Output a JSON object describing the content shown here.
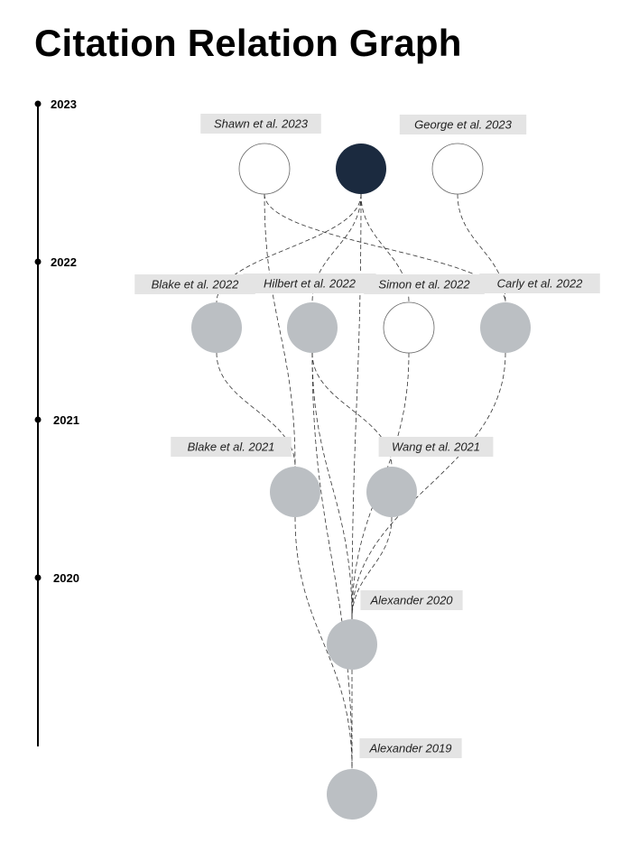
{
  "title": "Citation Relation Graph",
  "timeline": [
    "2023",
    "2022",
    "2021",
    "2020"
  ],
  "colors": {
    "focus": "#1b2a3f",
    "cited": "#bbbfc3",
    "uncited": "#ffffff",
    "label_bg": "#e4e4e4"
  },
  "nodes": [
    {
      "id": "shawn2023",
      "label": "Shawn et al. 2023",
      "year": 2023,
      "style": "uncited"
    },
    {
      "id": "focus2023",
      "label": "",
      "year": 2023,
      "style": "focus"
    },
    {
      "id": "george2023",
      "label": "George et al. 2023",
      "year": 2023,
      "style": "uncited"
    },
    {
      "id": "blake2022",
      "label": "Blake et al. 2022",
      "year": 2022,
      "style": "cited"
    },
    {
      "id": "hilbert2022",
      "label": "Hilbert et al. 2022",
      "year": 2022,
      "style": "cited"
    },
    {
      "id": "simon2022",
      "label": "Simon et al. 2022",
      "year": 2022,
      "style": "uncited"
    },
    {
      "id": "carly2022",
      "label": "Carly et al. 2022",
      "year": 2022,
      "style": "cited"
    },
    {
      "id": "blake2021",
      "label": "Blake et al. 2021",
      "year": 2021,
      "style": "cited"
    },
    {
      "id": "wang2021",
      "label": "Wang et al. 2021",
      "year": 2021,
      "style": "cited"
    },
    {
      "id": "alexander2020",
      "label": "Alexander 2020",
      "year": 2020,
      "style": "cited"
    },
    {
      "id": "alexander2019",
      "label": "Alexander 2019",
      "year": 2019,
      "style": "cited"
    }
  ],
  "edges": [
    [
      "shawn2023",
      "blake2021"
    ],
    [
      "shawn2023",
      "carly2022"
    ],
    [
      "focus2023",
      "blake2022"
    ],
    [
      "focus2023",
      "hilbert2022"
    ],
    [
      "focus2023",
      "simon2022"
    ],
    [
      "focus2023",
      "alexander2020"
    ],
    [
      "george2023",
      "carly2022"
    ],
    [
      "blake2022",
      "blake2021"
    ],
    [
      "hilbert2022",
      "alexander2020"
    ],
    [
      "hilbert2022",
      "wang2021"
    ],
    [
      "simon2022",
      "alexander2020"
    ],
    [
      "carly2022",
      "alexander2020"
    ],
    [
      "blake2021",
      "alexander2019"
    ],
    [
      "wang2021",
      "alexander2020"
    ],
    [
      "alexander2020",
      "alexander2019"
    ],
    [
      "hilbert2022",
      "alexander2019"
    ]
  ]
}
